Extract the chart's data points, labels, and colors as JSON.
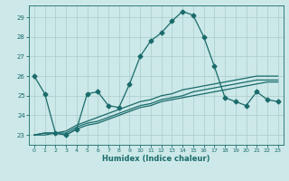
{
  "xlabel": "Humidex (Indice chaleur)",
  "bg_color": "#cce8e8",
  "grid_color": "#aacccc",
  "line_color": "#1a6b6b",
  "xlim": [
    -0.5,
    23.5
  ],
  "ylim": [
    22.5,
    29.6
  ],
  "xticks": [
    0,
    1,
    2,
    3,
    4,
    5,
    6,
    7,
    8,
    9,
    10,
    11,
    12,
    13,
    14,
    15,
    16,
    17,
    18,
    19,
    20,
    21,
    22,
    23
  ],
  "yticks": [
    23,
    24,
    25,
    26,
    27,
    28,
    29
  ],
  "series_main": [
    26.0,
    25.1,
    23.1,
    23.0,
    23.3,
    25.1,
    25.2,
    24.5,
    24.4,
    25.6,
    27.0,
    27.8,
    28.2,
    28.8,
    29.3,
    29.1,
    28.0,
    26.5,
    24.9,
    24.7,
    24.5,
    25.2,
    24.8,
    24.7
  ],
  "series_upper": [
    23.0,
    23.1,
    23.1,
    23.2,
    23.5,
    23.7,
    23.9,
    24.1,
    24.3,
    24.5,
    24.7,
    24.8,
    25.0,
    25.1,
    25.3,
    25.4,
    25.5,
    25.6,
    25.7,
    25.8,
    25.9,
    26.0,
    26.0,
    26.0
  ],
  "series_mid": [
    23.0,
    23.1,
    23.1,
    23.1,
    23.4,
    23.6,
    23.7,
    23.9,
    24.1,
    24.3,
    24.5,
    24.6,
    24.8,
    24.9,
    25.0,
    25.2,
    25.3,
    25.4,
    25.5,
    25.6,
    25.7,
    25.8,
    25.8,
    25.8
  ],
  "series_lower": [
    23.0,
    23.0,
    23.1,
    23.0,
    23.3,
    23.5,
    23.6,
    23.8,
    24.0,
    24.2,
    24.4,
    24.5,
    24.7,
    24.8,
    24.9,
    25.0,
    25.1,
    25.2,
    25.3,
    25.4,
    25.5,
    25.6,
    25.7,
    25.7
  ],
  "marker": "D",
  "markersize": 2.5,
  "linewidth": 0.9
}
